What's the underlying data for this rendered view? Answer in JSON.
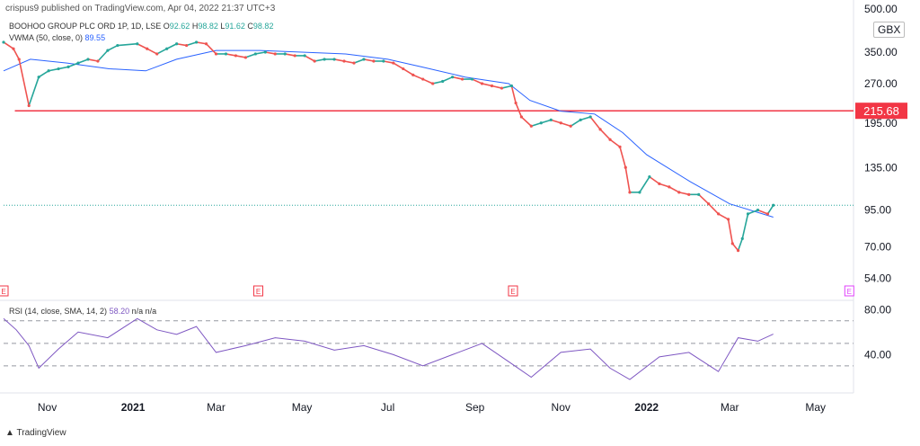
{
  "header": {
    "published": "crispus9 published on TradingView.com, Apr 04, 2022 21:37 UTC+3"
  },
  "legend": {
    "symbol": "BOOHOO GROUP PLC ORD 1P, 1D, LSE",
    "o_label": "O",
    "o_value": "92.62",
    "h_label": "H",
    "h_value": "98.82",
    "l_label": "L",
    "l_value": "91.62",
    "c_label": "C",
    "c_value": "98.82",
    "vwma_label": "VWMA (50, close, 0)",
    "vwma_value": "89.55",
    "rsi_label": "RSI (14, close, SMA, 14, 2)",
    "rsi_value": "58.20",
    "rsi_na1": "n/a",
    "rsi_na2": "n/a"
  },
  "currency": "GBX",
  "footer": {
    "brand": "TradingView"
  },
  "colors": {
    "up": "#26a69a",
    "down": "#ef5350",
    "vwma": "#2962ff",
    "rsi": "#7e57c2",
    "level": "#f23645",
    "current": "#26a69a"
  },
  "chart_data": {
    "type": "line",
    "scale": "log",
    "price_axis": {
      "ticks": [
        500,
        350,
        270,
        195,
        135,
        95,
        70,
        54
      ],
      "tick_labels": [
        "500.00",
        "350.00",
        "270.00",
        "195.00",
        "135.00",
        "95.00",
        "70.00",
        "54.00"
      ],
      "range": [
        50,
        500
      ]
    },
    "x_axis": {
      "ticks": [
        "2020-11-01",
        "2021-01-01",
        "2021-03-01",
        "2021-05-01",
        "2021-07-01",
        "2021-09-01",
        "2021-11-01",
        "2022-01-01",
        "2022-03-01",
        "2022-05-01"
      ],
      "tick_labels": [
        "Nov",
        "2021",
        "Mar",
        "May",
        "Jul",
        "Sep",
        "Nov",
        "2022",
        "Mar",
        "May"
      ],
      "range": [
        "2020-10-01",
        "2022-05-28"
      ]
    },
    "horizontal_level": {
      "value": 215.68,
      "label": "215.68",
      "from": "2020-10-09"
    },
    "current_price": 98.82,
    "series": [
      {
        "name": "Close",
        "x": [
          "2020-10-01",
          "2020-10-08",
          "2020-10-12",
          "2020-10-19",
          "2020-10-26",
          "2020-11-02",
          "2020-11-09",
          "2020-11-16",
          "2020-11-23",
          "2020-11-30",
          "2020-12-07",
          "2020-12-14",
          "2020-12-21",
          "2021-01-04",
          "2021-01-11",
          "2021-01-18",
          "2021-01-25",
          "2021-02-01",
          "2021-02-08",
          "2021-02-15",
          "2021-02-22",
          "2021-03-01",
          "2021-03-08",
          "2021-03-15",
          "2021-03-22",
          "2021-03-29",
          "2021-04-05",
          "2021-04-12",
          "2021-04-19",
          "2021-04-26",
          "2021-05-03",
          "2021-05-10",
          "2021-05-17",
          "2021-05-24",
          "2021-05-31",
          "2021-06-07",
          "2021-06-14",
          "2021-06-21",
          "2021-06-28",
          "2021-07-05",
          "2021-07-12",
          "2021-07-19",
          "2021-07-26",
          "2021-08-02",
          "2021-08-09",
          "2021-08-16",
          "2021-08-23",
          "2021-08-30",
          "2021-09-06",
          "2021-09-13",
          "2021-09-20",
          "2021-09-27",
          "2021-09-30",
          "2021-10-04",
          "2021-10-11",
          "2021-10-18",
          "2021-10-25",
          "2021-11-01",
          "2021-11-08",
          "2021-11-15",
          "2021-11-22",
          "2021-11-29",
          "2021-12-06",
          "2021-12-13",
          "2021-12-17",
          "2021-12-20",
          "2021-12-27",
          "2022-01-03",
          "2022-01-10",
          "2022-01-17",
          "2022-01-24",
          "2022-01-31",
          "2022-02-07",
          "2022-02-14",
          "2022-02-21",
          "2022-02-28",
          "2022-03-03",
          "2022-03-07",
          "2022-03-10",
          "2022-03-14",
          "2022-03-21",
          "2022-03-28",
          "2022-04-01"
        ],
        "values": [
          380,
          360,
          330,
          225,
          285,
          300,
          305,
          310,
          320,
          330,
          325,
          355,
          370,
          375,
          360,
          345,
          360,
          375,
          370,
          380,
          375,
          345,
          345,
          340,
          335,
          345,
          350,
          345,
          345,
          340,
          340,
          325,
          330,
          330,
          325,
          320,
          330,
          325,
          325,
          320,
          305,
          290,
          280,
          270,
          275,
          285,
          280,
          280,
          270,
          265,
          260,
          265,
          230,
          205,
          190,
          195,
          200,
          195,
          190,
          200,
          205,
          185,
          170,
          160,
          135,
          110,
          110,
          125,
          118,
          115,
          110,
          108,
          108,
          100,
          92,
          88,
          72,
          68,
          75,
          92,
          95,
          92,
          98.82
        ]
      },
      {
        "name": "VWMA (50, close, 0)",
        "x": [
          "2020-10-01",
          "2020-10-20",
          "2020-11-15",
          "2020-12-15",
          "2021-01-10",
          "2021-02-01",
          "2021-03-01",
          "2021-04-01",
          "2021-05-01",
          "2021-06-01",
          "2021-07-01",
          "2021-07-25",
          "2021-08-25",
          "2021-09-25",
          "2021-10-10",
          "2021-11-01",
          "2021-11-25",
          "2021-12-15",
          "2022-01-01",
          "2022-02-01",
          "2022-03-01",
          "2022-04-01"
        ],
        "values": [
          300,
          330,
          320,
          305,
          300,
          330,
          355,
          355,
          350,
          345,
          330,
          310,
          285,
          270,
          235,
          215,
          210,
          180,
          150,
          120,
          100,
          89.55
        ]
      },
      {
        "name": "RSI (14, close, SMA, 14, 2)",
        "x": [
          "2020-10-01",
          "2020-10-10",
          "2020-10-19",
          "2020-10-26",
          "2020-11-09",
          "2020-11-23",
          "2020-12-14",
          "2021-01-04",
          "2021-01-18",
          "2021-02-01",
          "2021-02-15",
          "2021-03-01",
          "2021-03-22",
          "2021-04-12",
          "2021-05-03",
          "2021-05-24",
          "2021-06-14",
          "2021-07-05",
          "2021-07-26",
          "2021-08-16",
          "2021-09-06",
          "2021-09-27",
          "2021-10-11",
          "2021-11-01",
          "2021-11-22",
          "2021-12-06",
          "2021-12-20",
          "2022-01-10",
          "2022-01-31",
          "2022-02-21",
          "2022-03-07",
          "2022-03-21",
          "2022-04-01"
        ],
        "values": [
          72,
          62,
          48,
          28,
          45,
          60,
          55,
          72,
          62,
          58,
          65,
          42,
          48,
          55,
          52,
          44,
          48,
          40,
          30,
          40,
          50,
          32,
          20,
          42,
          45,
          28,
          18,
          38,
          42,
          25,
          55,
          52,
          58.2
        ]
      }
    ],
    "rsi_axis": {
      "ticks": [
        80,
        40
      ],
      "tick_labels": [
        "80.00",
        "40.00"
      ],
      "upper_band": 70,
      "middle": 50,
      "lower_band": 30,
      "range": [
        10,
        85
      ]
    },
    "earnings_markers": [
      "2020-10-01",
      "2021-03-31",
      "2021-09-28",
      "2022-05-25"
    ],
    "earnings_label": "E"
  }
}
